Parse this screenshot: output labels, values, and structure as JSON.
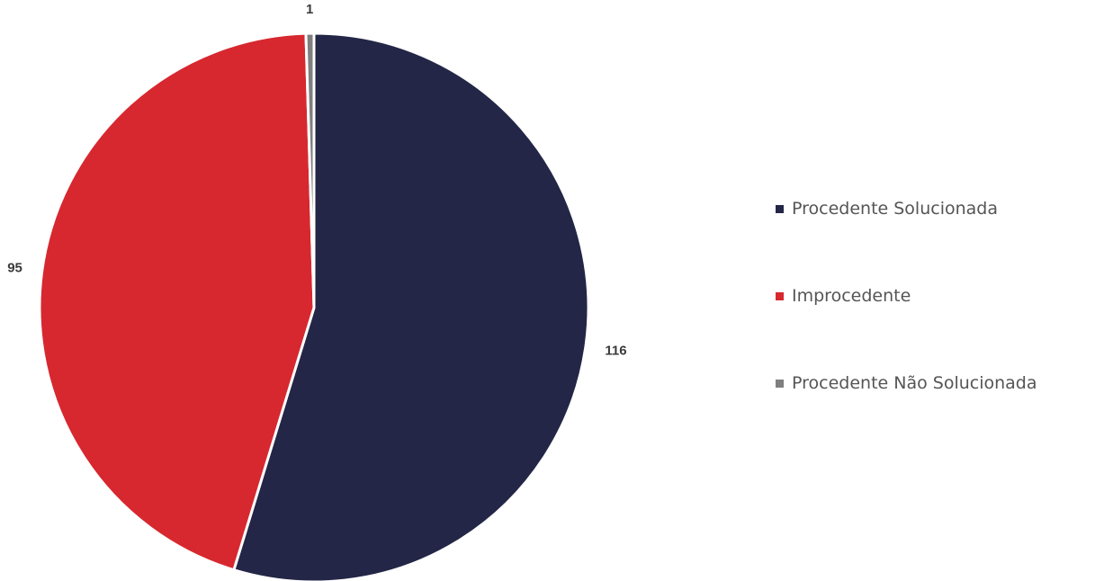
{
  "chart_data": {
    "type": "pie",
    "title": "",
    "slices": [
      {
        "label": "Procedente Solucionada",
        "value": 116,
        "color": "#232646"
      },
      {
        "label": "Improcedente",
        "value": 95,
        "color": "#d7282f"
      },
      {
        "label": "Procedente Não Solucionada",
        "value": 1,
        "color": "#7f7f7f"
      }
    ],
    "legend_position": "right",
    "data_labels": "outside"
  }
}
